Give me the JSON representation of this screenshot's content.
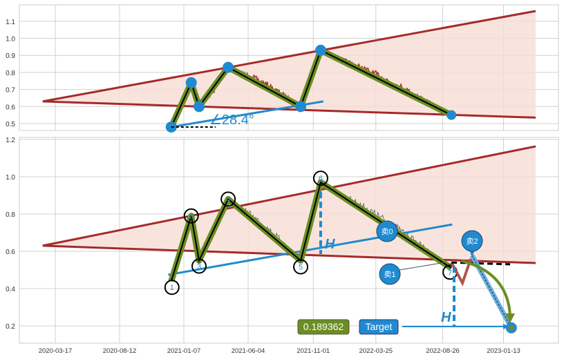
{
  "chart_data": [
    {
      "type": "line",
      "panel": "top",
      "yticks": [
        "0.5",
        "0.6",
        "0.7",
        "0.8",
        "0.9",
        "1.0",
        "1.1"
      ],
      "ylim": [
        0.44,
        1.2
      ],
      "grid": true,
      "angle_label": "∠28.4°",
      "pivots": [
        {
          "date": "2020-12-09",
          "value": 0.48
        },
        {
          "date": "2021-01-24",
          "value": 0.74
        },
        {
          "date": "2021-02-11",
          "value": 0.6
        },
        {
          "date": "2021-04-19",
          "value": 0.83
        },
        {
          "date": "2021-10-03",
          "value": 0.6
        },
        {
          "date": "2021-11-18",
          "value": 0.93
        },
        {
          "date": "2022-09-15",
          "value": 0.55
        }
      ],
      "upper_line": [
        {
          "date": "2020-02-17",
          "value": 0.63
        },
        {
          "date": "2023-03-28",
          "value": 1.16
        }
      ],
      "lower_line": [
        {
          "date": "2020-02-17",
          "value": 0.63
        },
        {
          "date": "2023-03-28",
          "value": 0.535
        }
      ],
      "support_line": [
        {
          "date": "2020-12-09",
          "value": 0.48
        },
        {
          "date": "2021-11-24",
          "value": 0.63
        }
      ],
      "colors": {
        "price": "#a52a2a",
        "pattern": "#6b8e23",
        "marker": "#1f8ad0",
        "triangle": "#a52a2a",
        "fill": "#f7ddd5"
      }
    },
    {
      "type": "line",
      "panel": "bottom",
      "yticks": [
        "0.2",
        "0.4",
        "0.6",
        "0.8",
        "1.0",
        "1.2"
      ],
      "ylim": [
        0.1,
        1.21
      ],
      "grid": true,
      "xticks": [
        "2020-03-17",
        "2020-08-12",
        "2021-01-07",
        "2021-06-04",
        "2021-11-01",
        "2022-03-25",
        "2022-08-26",
        "2023-01-13"
      ],
      "pivot_labels": [
        "1",
        "2",
        "3",
        "4",
        "5",
        "6",
        "7"
      ],
      "pivots": [
        {
          "date": "2020-12-09",
          "value": 0.44
        },
        {
          "date": "2021-01-24",
          "value": 0.79
        },
        {
          "date": "2021-02-11",
          "value": 0.55
        },
        {
          "date": "2021-04-19",
          "value": 0.88
        },
        {
          "date": "2021-10-03",
          "value": 0.55
        },
        {
          "date": "2021-11-18",
          "value": 0.97
        },
        {
          "date": "2022-09-15",
          "value": 0.51
        }
      ],
      "upper_line": [
        {
          "date": "2020-02-17",
          "value": 0.63
        },
        {
          "date": "2023-03-28",
          "value": 1.163
        }
      ],
      "lower_line": [
        {
          "date": "2020-02-17",
          "value": 0.63
        },
        {
          "date": "2023-03-28",
          "value": 0.537
        }
      ],
      "support_line": [
        {
          "date": "2020-12-02",
          "value": 0.474
        },
        {
          "date": "2022-09-17",
          "value": 0.744
        }
      ],
      "height_label": "H",
      "sell_signals": [
        "卖0",
        "卖1",
        "卖2"
      ],
      "target_label": "Target",
      "target_value": "0.189362",
      "target": {
        "date": "2023-01-31",
        "value": 0.189362
      },
      "colors": {
        "price": "#5a5a6a",
        "pattern": "#6b8e23",
        "marker": "#1f8ad0",
        "triangle": "#a52a2a",
        "fill": "#f7ddd5",
        "value_box": "#6b8e23",
        "target_box": "#1f8ad0"
      }
    }
  ]
}
